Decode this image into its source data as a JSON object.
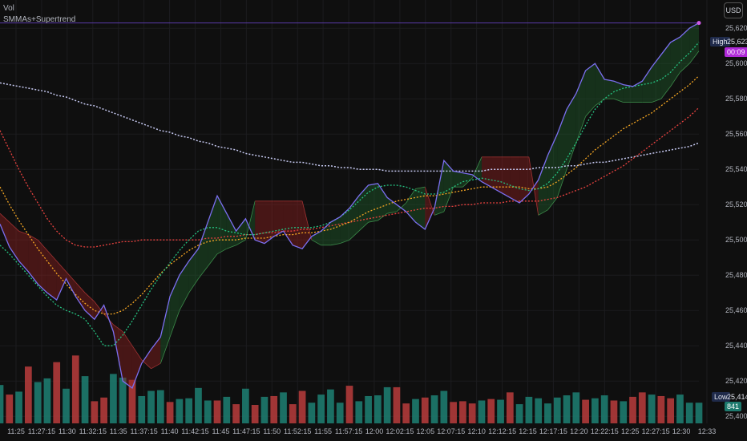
{
  "legend": {
    "vol": "Vol",
    "indicator": "SMMAs+Supertrend"
  },
  "currency_button": "USD",
  "markers": {
    "high_label": "High",
    "high_value": "25,623",
    "countdown": "00:09",
    "low_label": "Low",
    "low_value": "25,414",
    "last_volume": "841"
  },
  "colors": {
    "background": "#0f0f0f",
    "price": "#7b6ff0",
    "smma_fast": "#26c281",
    "smma_mid": "#f5a623",
    "smma_slow": "#e8423f",
    "smma_long": "#c5c8f0",
    "st_down": "#8b1e1e",
    "st_up": "#1e5a2a",
    "vol_up": "#1d7a6e",
    "vol_down": "#b03a3a"
  },
  "chart_data": {
    "type": "line",
    "y_axis": {
      "ticks": [
        25620,
        25600,
        25580,
        25560,
        25540,
        25520,
        25500,
        25480,
        25460,
        25440,
        25420,
        25400
      ],
      "tick_labels": [
        "25,620",
        "25,600",
        "25,580",
        "25,560",
        "25,540",
        "25,520",
        "25,500",
        "25,480",
        "25,460",
        "25,440",
        "25,420",
        "25,400"
      ],
      "ylim": [
        25396,
        25636
      ]
    },
    "x_axis": {
      "tick_labels": [
        "11:25",
        "11:27:15",
        "11:30",
        "11:32:15",
        "11:35",
        "11:37:15",
        "11:40",
        "11:42:15",
        "11:45",
        "11:47:15",
        "11:50",
        "11:52:15",
        "11:55",
        "11:57:15",
        "12:00",
        "12:02:15",
        "12:05",
        "12:07:15",
        "12:10",
        "12:12:15",
        "12:15",
        "12:17:15",
        "12:20",
        "12:22:15",
        "12:25",
        "12:27:15",
        "12:30",
        "12:33"
      ]
    },
    "series": [
      {
        "key": "price",
        "values": [
          25509,
          25496,
          25488,
          25482,
          25475,
          25470,
          25466,
          25478,
          25468,
          25460,
          25455,
          25463,
          25448,
          25420,
          25416,
          25430,
          25438,
          25445,
          25468,
          25480,
          25488,
          25495,
          25510,
          25525,
          25515,
          25505,
          25512,
          25500,
          25498,
          25502,
          25505,
          25497,
          25495,
          25502,
          25505,
          25510,
          25513,
          25518,
          25525,
          25531,
          25532,
          25524,
          25520,
          25516,
          25510,
          25506,
          25518,
          25545,
          25539,
          25538,
          25537,
          25533,
          25530,
          25527,
          25524,
          25521,
          25526,
          25534,
          25548,
          25560,
          25574,
          25583,
          25596,
          25600,
          25591,
          25590,
          25588,
          25587,
          25590,
          25598,
          25605,
          25612,
          25615,
          25620,
          25623
        ]
      },
      {
        "key": "smma_fast",
        "values": [
          25497,
          25492,
          25486,
          25480,
          25474,
          25468,
          25463,
          25460,
          25458,
          25455,
          25448,
          25440,
          25440,
          25446,
          25454,
          25463,
          25472,
          25480,
          25487,
          25494,
          25500,
          25505,
          25507,
          25507,
          25505,
          25504,
          25503,
          25503,
          25504,
          25505,
          25506,
          25507,
          25507,
          25507,
          25508,
          25510,
          25513,
          25517,
          25522,
          25527,
          25530,
          25531,
          25531,
          25530,
          25528,
          25526,
          25526,
          25527,
          25530,
          25533,
          25534,
          25535,
          25534,
          25533,
          25531,
          25529,
          25528,
          25529,
          25532,
          25538,
          25546,
          25555,
          25565,
          25574,
          25580,
          25584,
          25586,
          25587,
          25588,
          25589,
          25591,
          25595,
          25601,
          25606,
          25612
        ]
      },
      {
        "key": "smma_mid",
        "values": [
          25530,
          25520,
          25511,
          25503,
          25495,
          25488,
          25481,
          25475,
          25469,
          25464,
          25460,
          25458,
          25458,
          25460,
          25464,
          25469,
          25475,
          25481,
          25486,
          25490,
          25494,
          25497,
          25499,
          25500,
          25500,
          25500,
          25501,
          25501,
          25501,
          25502,
          25503,
          25503,
          25504,
          25504,
          25505,
          25506,
          25508,
          25510,
          25513,
          25516,
          25518,
          25520,
          25522,
          25523,
          25524,
          25525,
          25525,
          25526,
          25527,
          25528,
          25529,
          25530,
          25530,
          25530,
          25530,
          25530,
          25529,
          25529,
          25530,
          25533,
          25537,
          25541,
          25546,
          25551,
          25555,
          25559,
          25563,
          25566,
          25569,
          25572,
          25576,
          25580,
          25584,
          25588,
          25593
        ]
      },
      {
        "key": "smma_slow",
        "values": [
          25562,
          25551,
          25540,
          25530,
          25521,
          25512,
          25505,
          25500,
          25497,
          25496,
          25496,
          25497,
          25498,
          25499,
          25499,
          25500,
          25500,
          25500,
          25500,
          25500,
          25500,
          25500,
          25501,
          25501,
          25502,
          25502,
          25503,
          25503,
          25504,
          25504,
          25505,
          25505,
          25506,
          25506,
          25507,
          25508,
          25509,
          25510,
          25511,
          25512,
          25513,
          25514,
          25515,
          25516,
          25517,
          25518,
          25518,
          25519,
          25519,
          25520,
          25520,
          25521,
          25521,
          25521,
          25522,
          25522,
          25522,
          25522,
          25523,
          25524,
          25526,
          25528,
          25530,
          25533,
          25536,
          25539,
          25542,
          25546,
          25550,
          25554,
          25558,
          25562,
          25566,
          25570,
          25575
        ]
      },
      {
        "key": "smma_long",
        "values": [
          25589,
          25588,
          25587,
          25586,
          25585,
          25584,
          25582,
          25581,
          25579,
          25577,
          25576,
          25574,
          25572,
          25570,
          25568,
          25566,
          25564,
          25562,
          25561,
          25559,
          25558,
          25556,
          25555,
          25553,
          25552,
          25551,
          25549,
          25548,
          25547,
          25546,
          25545,
          25544,
          25544,
          25543,
          25542,
          25542,
          25541,
          25541,
          25540,
          25540,
          25540,
          25539,
          25539,
          25539,
          25539,
          25539,
          25539,
          25539,
          25539,
          25539,
          25539,
          25539,
          25540,
          25540,
          25540,
          25540,
          25540,
          25541,
          25541,
          25541,
          25542,
          25542,
          25543,
          25544,
          25544,
          25545,
          25546,
          25547,
          25548,
          25549,
          25550,
          25551,
          25552,
          25553,
          25555
        ]
      },
      {
        "key": "supertrend",
        "values": [
          25515,
          25510,
          25505,
          25503,
          25500,
          25494,
          25488,
          25482,
          25476,
          25470,
          25465,
          25458,
          25452,
          25448,
          25440,
          25432,
          25427,
          25430,
          25445,
          25460,
          25470,
          25478,
          25485,
          25492,
          25495,
          25497,
          25500,
          25522,
          25522,
          25522,
          25522,
          25522,
          25522,
          25500,
          25497,
          25497,
          25498,
          25500,
          25505,
          25510,
          25511,
          25515,
          25516,
          25521,
          25529,
          25530,
          25514,
          25516,
          25530,
          25530,
          25535,
          25547,
          25547,
          25547,
          25547,
          25547,
          25547,
          25514,
          25517,
          25524,
          25540,
          25555,
          25570,
          25576,
          25580,
          25580,
          25578,
          25578,
          25578,
          25578,
          25580,
          25587,
          25595,
          25600,
          25607
        ]
      },
      {
        "key": "volume",
        "values": [
          52,
          39,
          43,
          77,
          56,
          61,
          83,
          47,
          92,
          64,
          30,
          35,
          67,
          62,
          59,
          37,
          44,
          45,
          29,
          33,
          34,
          48,
          31,
          31,
          36,
          26,
          47,
          25,
          36,
          37,
          42,
          26,
          44,
          28,
          39,
          46,
          28,
          51,
          30,
          37,
          38,
          49,
          49,
          27,
          33,
          35,
          38,
          44,
          29,
          30,
          27,
          31,
          33,
          32,
          42,
          26,
          36,
          34,
          27,
          35,
          38,
          42,
          32,
          34,
          38,
          31,
          30,
          36,
          42,
          39,
          37,
          34,
          39,
          28,
          28
        ]
      }
    ],
    "supertrend_direction": [
      -1,
      -1,
      -1,
      -1,
      -1,
      -1,
      -1,
      -1,
      -1,
      -1,
      -1,
      -1,
      -1,
      -1,
      -1,
      -1,
      -1,
      1,
      1,
      1,
      1,
      1,
      1,
      1,
      1,
      1,
      1,
      -1,
      -1,
      -1,
      -1,
      -1,
      -1,
      1,
      1,
      1,
      1,
      1,
      1,
      1,
      1,
      1,
      1,
      1,
      1,
      -1,
      1,
      1,
      1,
      1,
      1,
      -1,
      -1,
      -1,
      -1,
      -1,
      -1,
      1,
      1,
      1,
      1,
      1,
      1,
      1,
      1,
      1,
      1,
      1,
      1,
      1,
      1,
      1,
      1,
      1,
      1
    ],
    "volume_direction": [
      1,
      -1,
      1,
      -1,
      1,
      1,
      -1,
      1,
      -1,
      1,
      -1,
      -1,
      1,
      1,
      -1,
      1,
      1,
      1,
      -1,
      1,
      1,
      1,
      1,
      -1,
      1,
      -1,
      1,
      -1,
      1,
      -1,
      1,
      -1,
      -1,
      1,
      1,
      1,
      1,
      -1,
      1,
      1,
      1,
      1,
      -1,
      -1,
      1,
      -1,
      1,
      1,
      -1,
      -1,
      -1,
      1,
      -1,
      1,
      -1,
      1,
      1,
      1,
      1,
      1,
      1,
      1,
      -1,
      1,
      1,
      -1,
      1,
      -1,
      -1,
      1,
      -1,
      -1,
      1,
      1,
      1
    ],
    "grid": true
  }
}
